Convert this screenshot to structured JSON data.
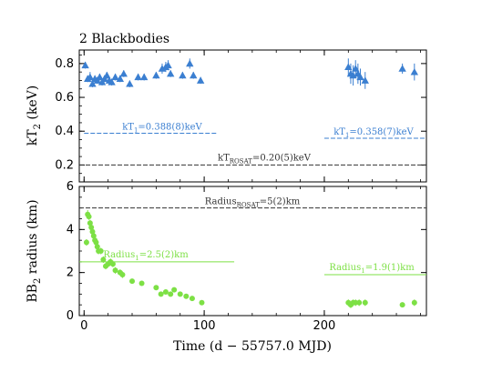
{
  "chart_data": [
    {
      "type": "scatter",
      "title": "2 Blackbodies",
      "ylabel": "kT2 (keV)",
      "ylabel_main": "kT",
      "ylabel_sub": "2",
      "ylabel_unit": " (keV)",
      "xlim": [
        -4,
        285
      ],
      "ylim": [
        0.1,
        0.88
      ],
      "yticks": [
        0.2,
        0.4,
        0.6,
        0.8
      ],
      "ytick_labels": [
        "0.2",
        "0.4",
        "0.6",
        "0.8"
      ],
      "xticks": [
        0,
        100,
        200
      ],
      "grid": false,
      "series": [
        {
          "marker": "triangle",
          "color": "#3b7fd1",
          "x": [
            1,
            3,
            5,
            7,
            9,
            11,
            13,
            15,
            17,
            19,
            21,
            23,
            26,
            30,
            33,
            38,
            45,
            50,
            60,
            65,
            68,
            70,
            72,
            82,
            88,
            91,
            97,
            220,
            222,
            224,
            226,
            228,
            230,
            234,
            265,
            275
          ],
          "y": [
            0.79,
            0.71,
            0.72,
            0.68,
            0.71,
            0.7,
            0.72,
            0.69,
            0.71,
            0.73,
            0.7,
            0.69,
            0.72,
            0.71,
            0.74,
            0.68,
            0.72,
            0.72,
            0.73,
            0.77,
            0.78,
            0.79,
            0.74,
            0.73,
            0.8,
            0.73,
            0.7,
            0.78,
            0.74,
            0.73,
            0.77,
            0.74,
            0.72,
            0.7,
            0.77,
            0.75
          ],
          "yerr": [
            0.02,
            0.02,
            0.03,
            0.02,
            0.02,
            0.02,
            0.02,
            0.02,
            0.02,
            0.02,
            0.02,
            0.02,
            0.02,
            0.02,
            0.02,
            0.02,
            0.02,
            0.02,
            0.02,
            0.03,
            0.03,
            0.03,
            0.02,
            0.02,
            0.03,
            0.02,
            0.02,
            0.05,
            0.06,
            0.06,
            0.05,
            0.06,
            0.05,
            0.05,
            0.03,
            0.05
          ]
        }
      ],
      "reference_lines": [
        {
          "y": 0.388,
          "x0": 0,
          "x1": 110,
          "color": "#3b7fd1",
          "dash": true,
          "label_main": "kT",
          "label_sub": "1",
          "label_rest": "=0.388(8)keV"
        },
        {
          "y": 0.358,
          "x0": 200,
          "x1": 285,
          "color": "#3b7fd1",
          "dash": true,
          "label_main": "kT",
          "label_sub": "1",
          "label_rest": "=0.358(7)keV"
        },
        {
          "y": 0.2,
          "x0": -4,
          "x1": 285,
          "color": "#333333",
          "dash": true,
          "label_main": "kT",
          "label_sub": "ROSAT",
          "label_rest": "=0.20(5)keV"
        }
      ]
    },
    {
      "type": "scatter",
      "title": "",
      "ylabel": "BB2 radius (km)",
      "ylabel_main": "BB",
      "ylabel_sub": "2",
      "ylabel_unit": " radius (km)",
      "xlabel": "Time (d − 55757.0 MJD)",
      "xlim": [
        -4,
        285
      ],
      "ylim": [
        0,
        6
      ],
      "yticks": [
        0,
        2,
        4,
        6
      ],
      "ytick_labels": [
        "0",
        "2",
        "4",
        "6"
      ],
      "xticks": [
        0,
        100,
        200
      ],
      "xtick_labels": [
        "0",
        "100",
        "200"
      ],
      "grid": false,
      "series": [
        {
          "marker": "circle",
          "color": "#7de045",
          "x": [
            2,
            3,
            4,
            5,
            6,
            7,
            8,
            9,
            10,
            11,
            12,
            14,
            16,
            18,
            20,
            22,
            24,
            26,
            30,
            32,
            40,
            48,
            60,
            64,
            68,
            72,
            75,
            80,
            85,
            90,
            98,
            220,
            222,
            224,
            226,
            229,
            234,
            265,
            275
          ],
          "y": [
            3.4,
            4.7,
            4.6,
            4.3,
            4.1,
            3.9,
            3.7,
            3.5,
            3.4,
            3.2,
            3.0,
            3.0,
            2.6,
            2.3,
            2.4,
            2.5,
            2.4,
            2.1,
            2.0,
            1.9,
            1.6,
            1.5,
            1.3,
            1.0,
            1.1,
            1.0,
            1.2,
            1.0,
            0.9,
            0.8,
            0.6,
            0.6,
            0.5,
            0.6,
            0.6,
            0.6,
            0.6,
            0.5,
            0.6
          ],
          "yerr": [
            0.15,
            0.2,
            0.15,
            0.15,
            0.15,
            0.15,
            0.15,
            0.15,
            0.15,
            0.15,
            0.15,
            0.15,
            0.15,
            0.15,
            0.15,
            0.15,
            0.15,
            0.15,
            0.15,
            0.15,
            0.1,
            0.1,
            0.1,
            0.1,
            0.1,
            0.1,
            0.1,
            0.1,
            0.1,
            0.1,
            0.1,
            0.15,
            0.15,
            0.15,
            0.15,
            0.15,
            0.15,
            0.1,
            0.15
          ]
        }
      ],
      "reference_lines": [
        {
          "y": 5.0,
          "x0": -4,
          "x1": 285,
          "color": "#333333",
          "dash": true,
          "label_main": "Radius",
          "label_sub": "ROSAT",
          "label_rest": "=5(2)km"
        },
        {
          "y": 2.5,
          "x0": -4,
          "x1": 125,
          "color": "#7de045",
          "dash": false,
          "label_main": "Radius",
          "label_sub": "1",
          "label_rest": "=2.5(2)km"
        },
        {
          "y": 1.9,
          "x0": 200,
          "x1": 285,
          "color": "#7de045",
          "dash": false,
          "label_main": "Radius",
          "label_sub": "1",
          "label_rest": "=1.9(1)km"
        }
      ]
    }
  ]
}
